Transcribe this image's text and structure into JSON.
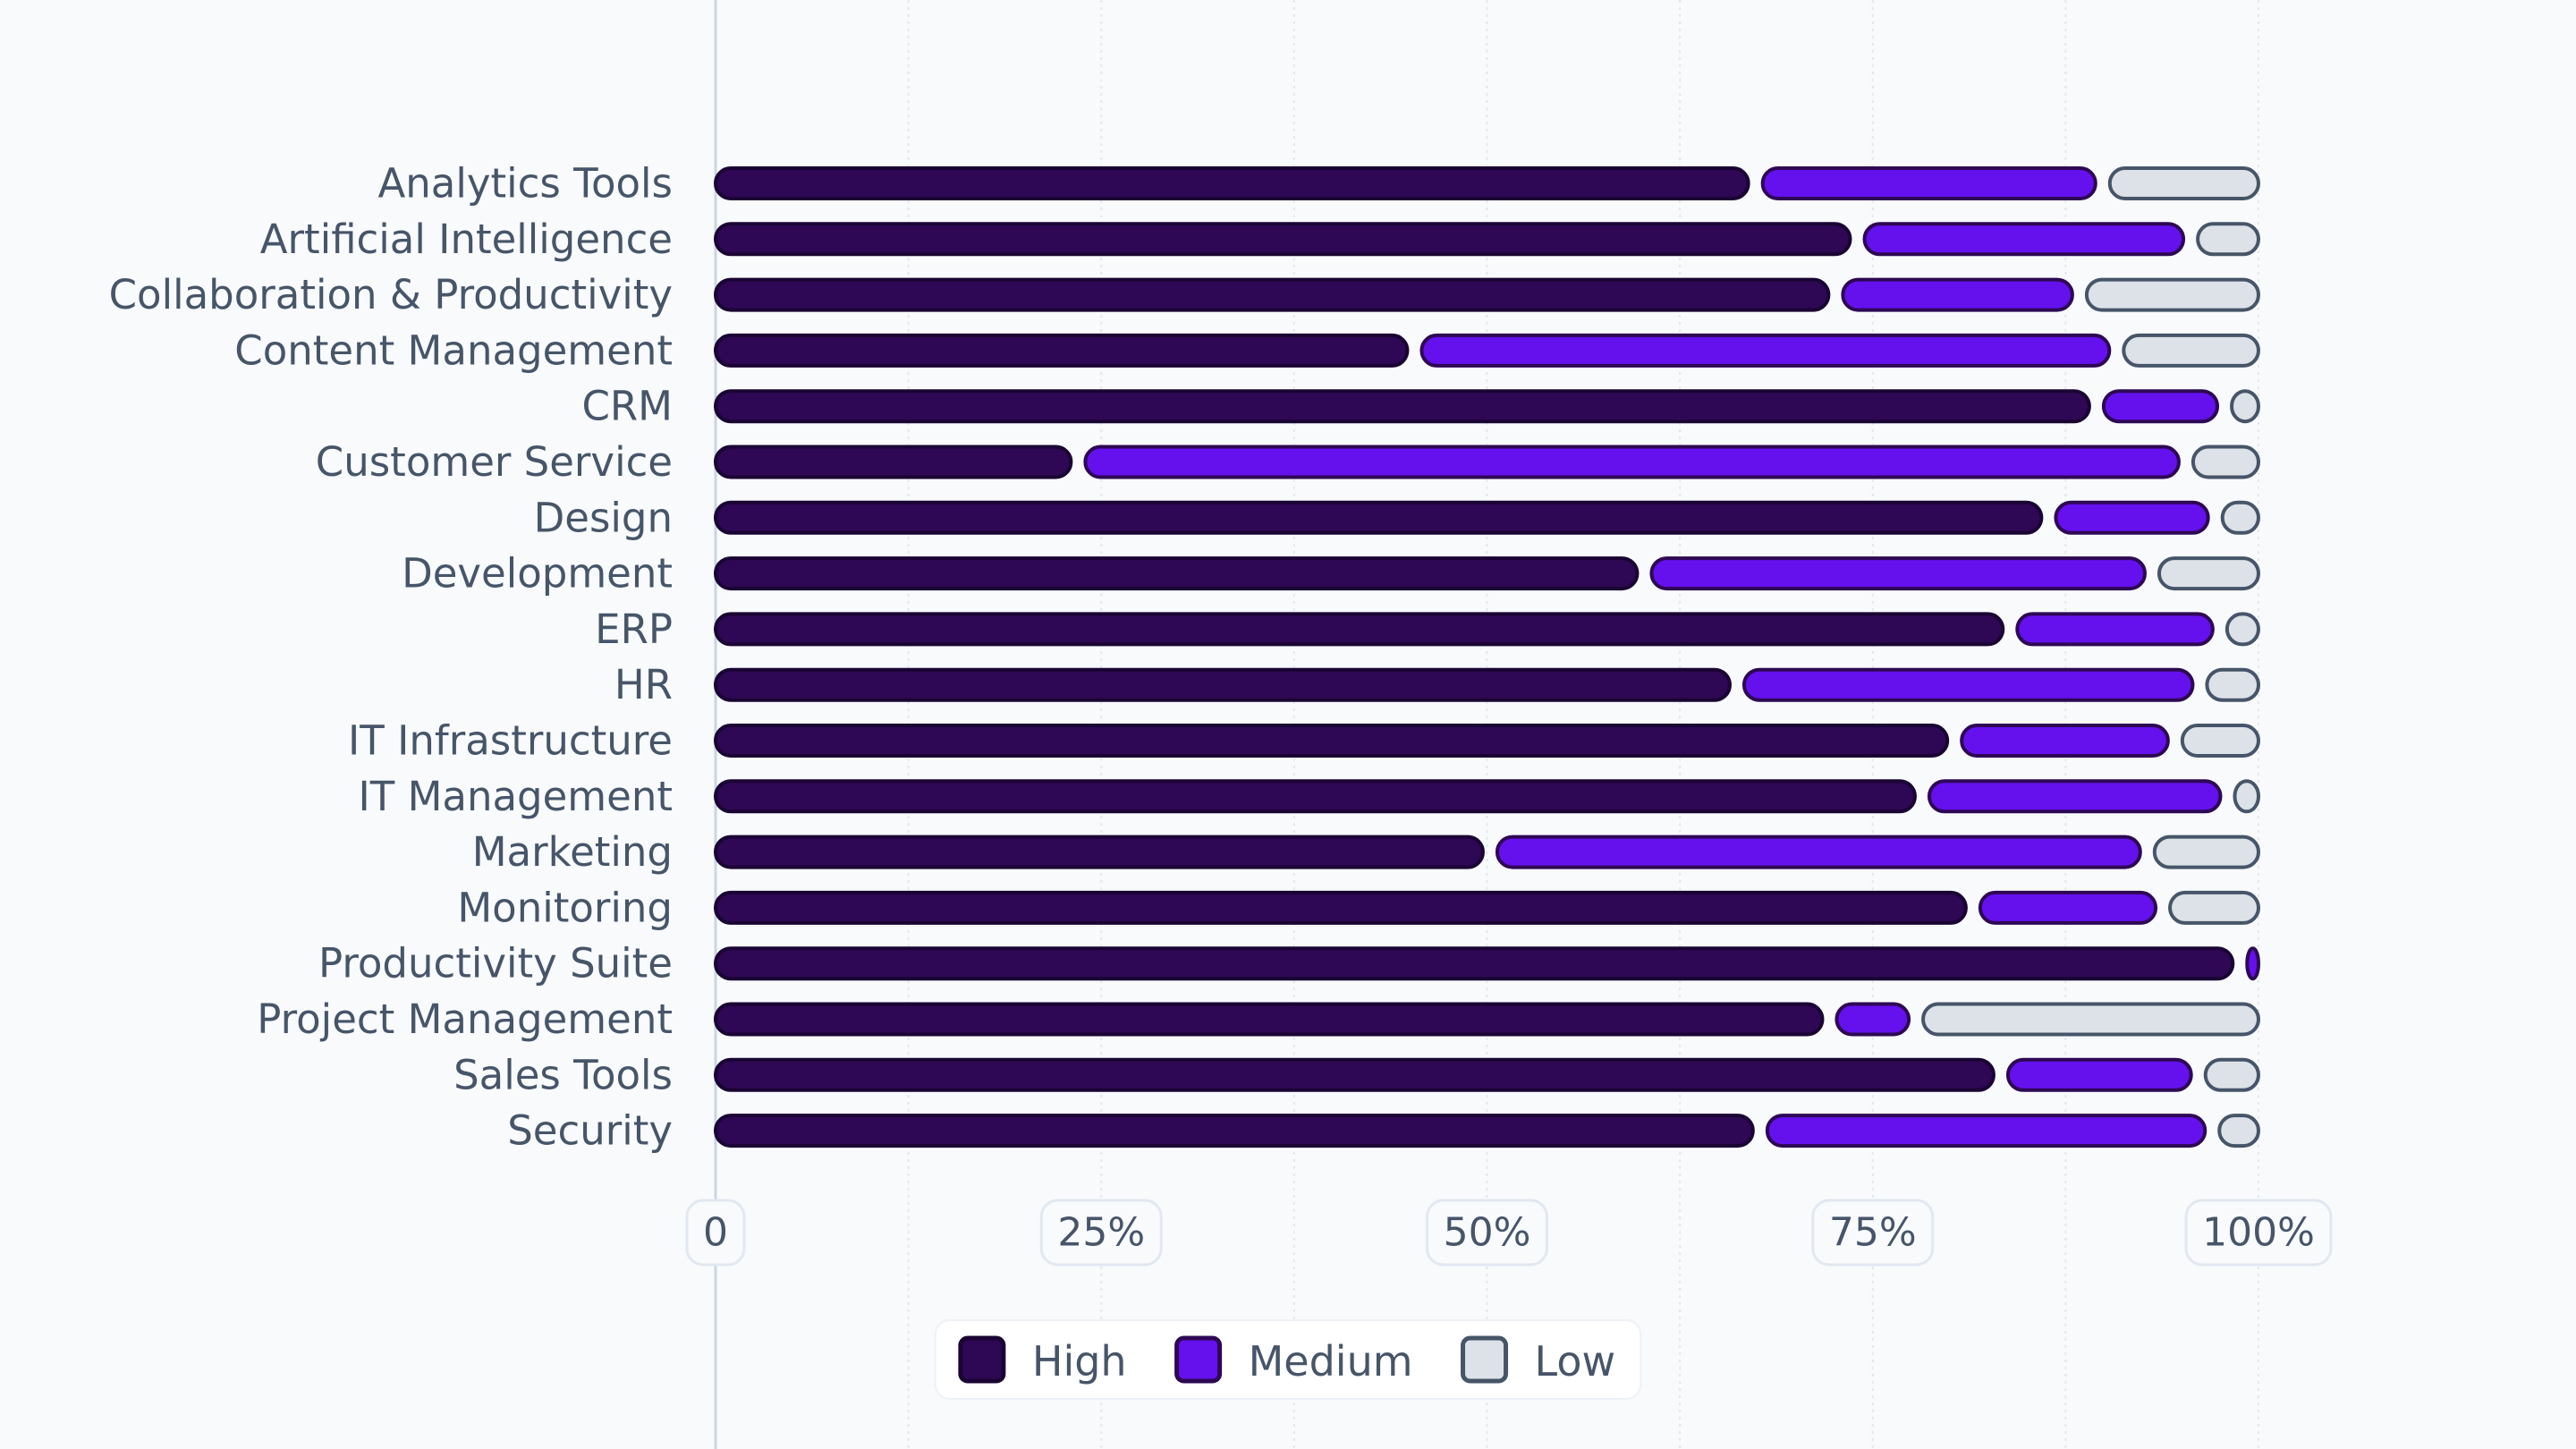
{
  "chart_data": {
    "type": "bar",
    "orientation": "horizontal",
    "stacked": true,
    "normalized": true,
    "title": "",
    "xlabel": "",
    "ylabel": "",
    "xlim": [
      0,
      100
    ],
    "x_ticks": [
      {
        "value": 0,
        "label": "0"
      },
      {
        "value": 25,
        "label": "25%"
      },
      {
        "value": 50,
        "label": "50%"
      },
      {
        "value": 75,
        "label": "75%"
      },
      {
        "value": 100,
        "label": "100%"
      }
    ],
    "grid": true,
    "legend_position": "bottom",
    "categories": [
      "Analytics Tools",
      "Artificial Intelligence",
      "Collaboration & Productivity",
      "Content Management",
      "CRM",
      "Customer Service",
      "Design",
      "Development",
      "ERP",
      "HR",
      "IT Infrastructure",
      "IT Management",
      "Marketing",
      "Monitoring",
      "Productivity Suite",
      "Project Management",
      "Sales Tools",
      "Security"
    ],
    "series": [
      {
        "name": "High",
        "color": "#2e0854",
        "stroke": "#1a0433",
        "values": [
          67.4,
          74.0,
          72.6,
          45.3,
          89.5,
          23.5,
          86.4,
          60.2,
          83.9,
          66.2,
          80.3,
          78.2,
          50.2,
          81.5,
          98.8,
          72.2,
          83.3,
          67.7
        ]
      },
      {
        "name": "Medium",
        "color": "#6411ed",
        "stroke": "#2e0854",
        "values": [
          22.5,
          21.6,
          15.8,
          45.5,
          8.3,
          71.8,
          10.8,
          32.9,
          13.6,
          30.0,
          14.3,
          19.8,
          42.6,
          12.3,
          1.2,
          5.6,
          12.8,
          29.3
        ]
      },
      {
        "name": "Low",
        "color": "#dde2e8",
        "stroke": "#475569",
        "values": [
          10.1,
          4.4,
          11.6,
          9.2,
          2.2,
          4.7,
          2.8,
          6.9,
          2.5,
          3.8,
          5.4,
          2.0,
          7.2,
          6.2,
          0,
          22.2,
          3.9,
          3.0
        ]
      }
    ]
  }
}
